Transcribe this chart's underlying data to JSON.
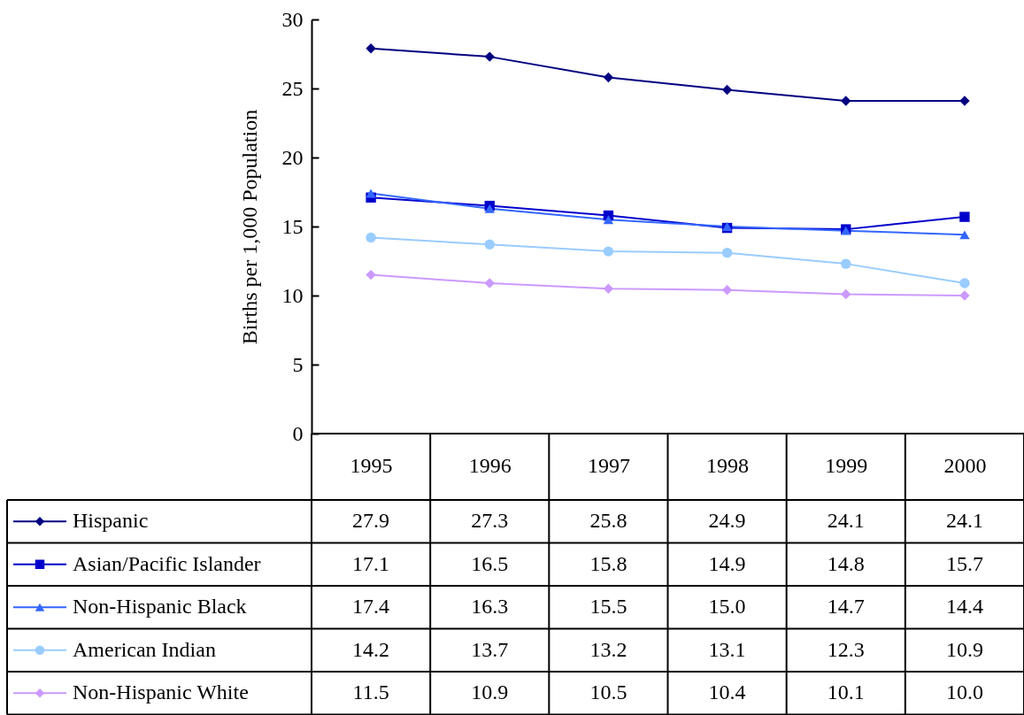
{
  "chart_data": {
    "type": "line",
    "ylabel": "Births per 1,000 Population",
    "categories": [
      "1995",
      "1996",
      "1997",
      "1998",
      "1999",
      "2000"
    ],
    "series": [
      {
        "name": "Hispanic",
        "color": "#000080",
        "marker": "diamond",
        "values": [
          27.9,
          27.3,
          25.8,
          24.9,
          24.1,
          24.1
        ],
        "value_labels": [
          "27.9",
          "27.3",
          "25.8",
          "24.9",
          "24.1",
          "24.1"
        ]
      },
      {
        "name": "Asian/Pacific Islander",
        "color": "#0000cc",
        "marker": "square",
        "values": [
          17.1,
          16.5,
          15.8,
          14.9,
          14.8,
          15.7
        ],
        "value_labels": [
          "17.1",
          "16.5",
          "15.8",
          "14.9",
          "14.8",
          "15.7"
        ]
      },
      {
        "name": "Non-Hispanic Black",
        "color": "#3366ff",
        "marker": "triangle",
        "values": [
          17.4,
          16.3,
          15.5,
          15.0,
          14.7,
          14.4
        ],
        "value_labels": [
          "17.4",
          "16.3",
          "15.5",
          "15.0",
          "14.7",
          "14.4"
        ]
      },
      {
        "name": "American Indian",
        "color": "#99ccff",
        "marker": "circle",
        "values": [
          14.2,
          13.7,
          13.2,
          13.1,
          12.3,
          10.9
        ],
        "value_labels": [
          "14.2",
          "13.7",
          "13.2",
          "13.1",
          "12.3",
          "10.9"
        ]
      },
      {
        "name": "Non-Hispanic White",
        "color": "#cc99ff",
        "marker": "diamond",
        "values": [
          11.5,
          10.9,
          10.5,
          10.4,
          10.1,
          10.0
        ],
        "value_labels": [
          "11.5",
          "10.9",
          "10.5",
          "10.4",
          "10.1",
          "10.0"
        ]
      }
    ],
    "ylim": [
      0,
      30
    ],
    "yticks": [
      0,
      5,
      10,
      15,
      20,
      25,
      30
    ],
    "legend": "bottom"
  }
}
